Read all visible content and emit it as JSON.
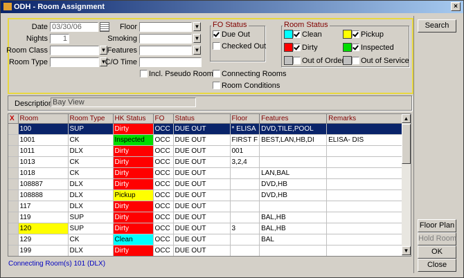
{
  "window": {
    "title": "ODH - Room Assignment"
  },
  "filters": {
    "date": {
      "label": "Date",
      "value": "03/30/06"
    },
    "nights": {
      "label": "Nights",
      "value": "1"
    },
    "room_class": {
      "label": "Room Class"
    },
    "room_type": {
      "label": "Room Type"
    },
    "floor": {
      "label": "Floor"
    },
    "smoking": {
      "label": "Smoking"
    },
    "features": {
      "label": "Features"
    },
    "co_time": {
      "label": "C/O Time"
    },
    "incl_pseudo_rooms": {
      "label": "Incl. Pseudo Rooms",
      "checked": false
    },
    "connecting_rooms": {
      "label": "Connecting Rooms",
      "checked": false
    },
    "room_conditions": {
      "label": "Room Conditions",
      "checked": false
    }
  },
  "fo_status": {
    "title": "FO Status",
    "options": [
      {
        "label": "Due Out",
        "checked": true
      },
      {
        "label": "Checked Out",
        "checked": false
      }
    ]
  },
  "room_status": {
    "title": "Room Status",
    "options": [
      {
        "label": "Clean",
        "color": "#00ffff",
        "checked": true
      },
      {
        "label": "Pickup",
        "color": "#ffff00",
        "checked": true
      },
      {
        "label": "Dirty",
        "color": "#ff0000",
        "checked": true
      },
      {
        "label": "Inspected",
        "color": "#00dd00",
        "checked": true
      },
      {
        "label": "Out of Order",
        "color": "#c0c0c0",
        "checked": false
      },
      {
        "label": "Out of Service",
        "color": "#c0c0c0",
        "checked": false
      }
    ]
  },
  "description": {
    "label": "Description",
    "value": "Bay View"
  },
  "table": {
    "columns": [
      "X",
      "Room",
      "Room Type",
      "HK Status",
      "FO",
      "Status",
      "Floor",
      "Features",
      "Remarks"
    ],
    "selected_row": 0,
    "rows": [
      [
        "100",
        "SUP",
        "Dirty",
        "OCC",
        "DUE OUT",
        "* ELISA",
        "DVD,TILE,POOL",
        null
      ],
      [
        "1001",
        "CK",
        "Inspected",
        "OCC",
        "DUE OUT",
        "FIRST F",
        "BEST,LAN,HB,DI",
        "ELISA- DIS"
      ],
      [
        "1011",
        "DLX",
        "Dirty",
        "OCC",
        "DUE OUT",
        "001",
        null,
        null
      ],
      [
        "1013",
        "CK",
        "Dirty",
        "OCC",
        "DUE OUT",
        "3,2,4",
        null,
        null
      ],
      [
        "1018",
        "CK",
        "Dirty",
        "OCC",
        "DUE OUT",
        null,
        "LAN,BAL",
        null
      ],
      [
        "108887",
        "DLX",
        "Dirty",
        "OCC",
        "DUE OUT",
        null,
        "DVD,HB",
        null
      ],
      [
        "108888",
        "DLX",
        "Pickup",
        "OCC",
        "DUE OUT",
        null,
        "DVD,HB",
        null
      ],
      [
        "117",
        "DLX",
        "Dirty",
        "OCC",
        "DUE OUT",
        null,
        null,
        null
      ],
      [
        "119",
        "SUP",
        "Dirty",
        "OCC",
        "DUE OUT",
        null,
        "BAL,HB",
        null
      ],
      [
        "120",
        "SUP",
        "Dirty",
        "OCC",
        "DUE OUT",
        "3",
        "BAL,HB",
        null
      ],
      [
        "129",
        "CK",
        "Clean",
        "OCC",
        "DUE OUT",
        null,
        "BAL",
        null
      ],
      [
        "199",
        "DLX",
        "Dirty",
        "OCC",
        "DUE OUT",
        null,
        null,
        null
      ]
    ]
  },
  "footer": "Connecting Room(s) 101 (DLX)",
  "buttons": {
    "search": "Search",
    "floor_plan": "Floor Plan",
    "hold_room": "Hold Room",
    "ok": "OK",
    "close": "Close"
  }
}
